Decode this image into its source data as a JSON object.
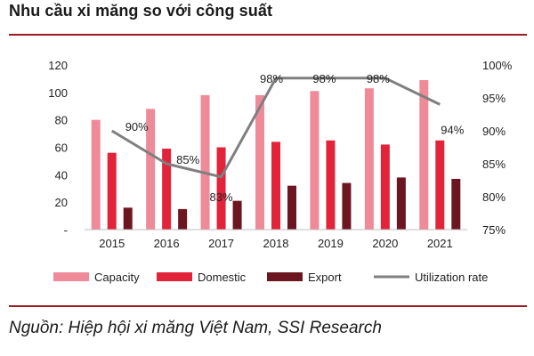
{
  "title": "Nhu cầu xi măng so với công suất",
  "source": "Nguồn: Hiệp hội xi măng Việt Nam, SSI Research",
  "chart_data": {
    "type": "bar",
    "categories": [
      "2015",
      "2016",
      "2017",
      "2018",
      "2019",
      "2020",
      "2021"
    ],
    "series": [
      {
        "name": "Capacity",
        "values": [
          80,
          88,
          98,
          98,
          101,
          103,
          109
        ],
        "color": "#ef8a99",
        "axis": "left"
      },
      {
        "name": "Domestic",
        "values": [
          56,
          59,
          60,
          64,
          65,
          62,
          65
        ],
        "color": "#e2243a",
        "axis": "left"
      },
      {
        "name": "Export",
        "values": [
          16,
          15,
          21,
          32,
          34,
          38,
          37
        ],
        "color": "#6b1620",
        "axis": "left"
      },
      {
        "name": "Utilization rate",
        "type": "line",
        "values": [
          90,
          85,
          83,
          98,
          98,
          98,
          94
        ],
        "color": "#7f7f7f",
        "axis": "right"
      }
    ],
    "data_labels": [
      "90%",
      "85%",
      "83%",
      "98%",
      "98%",
      "98%",
      "94%"
    ],
    "y_left": {
      "ylim": [
        0,
        120
      ],
      "ticks": [
        0,
        20,
        40,
        60,
        80,
        100,
        120
      ],
      "tick_labels": [
        "-",
        "20",
        "40",
        "60",
        "80",
        "100",
        "120"
      ]
    },
    "y_right": {
      "ylim": [
        75,
        100
      ],
      "ticks": [
        75,
        80,
        85,
        90,
        95,
        100
      ],
      "tick_labels": [
        "75%",
        "80%",
        "85%",
        "90%",
        "95%",
        "100%"
      ]
    },
    "grid": false,
    "legend_position": "bottom"
  }
}
